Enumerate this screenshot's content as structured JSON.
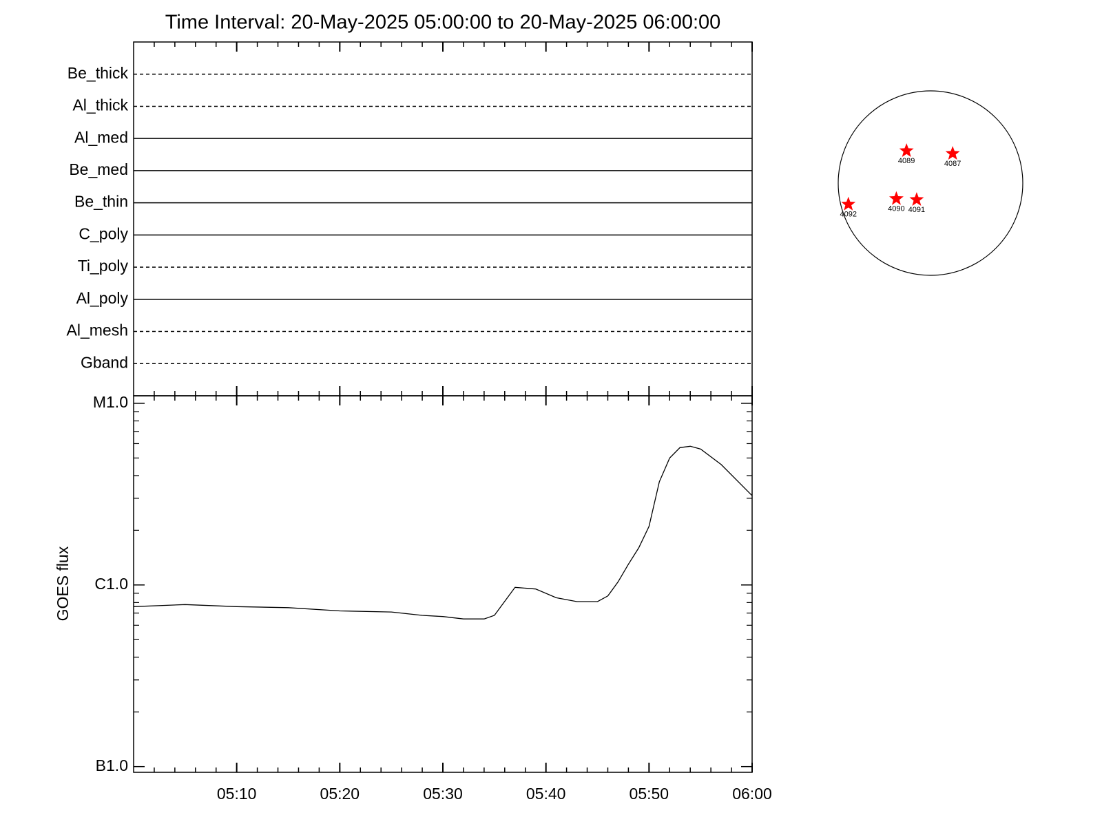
{
  "chart_data": [
    {
      "type": "timeline",
      "title": "Time Interval: 20-May-2025 05:00:00 to 20-May-2025 06:00:00",
      "categories": [
        "Be_thick",
        "Al_thick",
        "Al_med",
        "Be_med",
        "Be_thin",
        "C_poly",
        "Ti_poly",
        "Al_poly",
        "Al_mesh",
        "Gband"
      ],
      "line_styles": [
        "dashed",
        "dashed",
        "solid",
        "solid",
        "solid",
        "solid",
        "dashed",
        "solid",
        "dashed",
        "dashed"
      ],
      "color": "#000000"
    },
    {
      "type": "line",
      "ylabel": "GOES flux",
      "log_scale": true,
      "x": [
        "05:00",
        "05:05",
        "05:10",
        "05:15",
        "05:20",
        "05:25",
        "05:28",
        "05:30",
        "05:32",
        "05:34",
        "05:35",
        "05:37",
        "05:39",
        "05:41",
        "05:43",
        "05:45",
        "05:46",
        "05:47",
        "05:48",
        "05:49",
        "05:50",
        "05:51",
        "05:52",
        "05:53",
        "05:54",
        "05:55",
        "05:57",
        "06:00"
      ],
      "values": [
        7.6e-07,
        7.8e-07,
        7.6e-07,
        7.5e-07,
        7.2e-07,
        7.1e-07,
        6.8e-07,
        6.7e-07,
        6.5e-07,
        6.5e-07,
        6.8e-07,
        9.7e-07,
        9.5e-07,
        8.5e-07,
        8.1e-07,
        8.1e-07,
        8.7e-07,
        1.04e-06,
        1.3e-06,
        1.6e-06,
        2.1e-06,
        3.7e-06,
        5e-06,
        5.7e-06,
        5.8e-06,
        5.6e-06,
        4.6e-06,
        3.1e-06
      ],
      "color": "#000000",
      "xlim": [
        "05:00",
        "06:00"
      ],
      "xticks": [
        "05:10",
        "05:20",
        "05:30",
        "05:40",
        "05:50",
        "06:00"
      ],
      "ylim": [
        9.3e-08,
        1.1e-05
      ],
      "yticks": [
        {
          "value": 1e-07,
          "label": "B1.0"
        },
        {
          "value": 1e-06,
          "label": "C1.0"
        },
        {
          "value": 1e-05,
          "label": "M1.0"
        }
      ]
    },
    {
      "type": "scatter",
      "labels": [
        "4089",
        "4087",
        "4092",
        "4090",
        "4091"
      ],
      "x": [
        -0.26,
        0.24,
        -0.89,
        -0.37,
        -0.15
      ],
      "y": [
        0.35,
        0.32,
        -0.23,
        -0.17,
        -0.18
      ],
      "xlim": [
        -1,
        1
      ],
      "ylim": [
        -1,
        1
      ],
      "color": "#ff0000"
    }
  ]
}
